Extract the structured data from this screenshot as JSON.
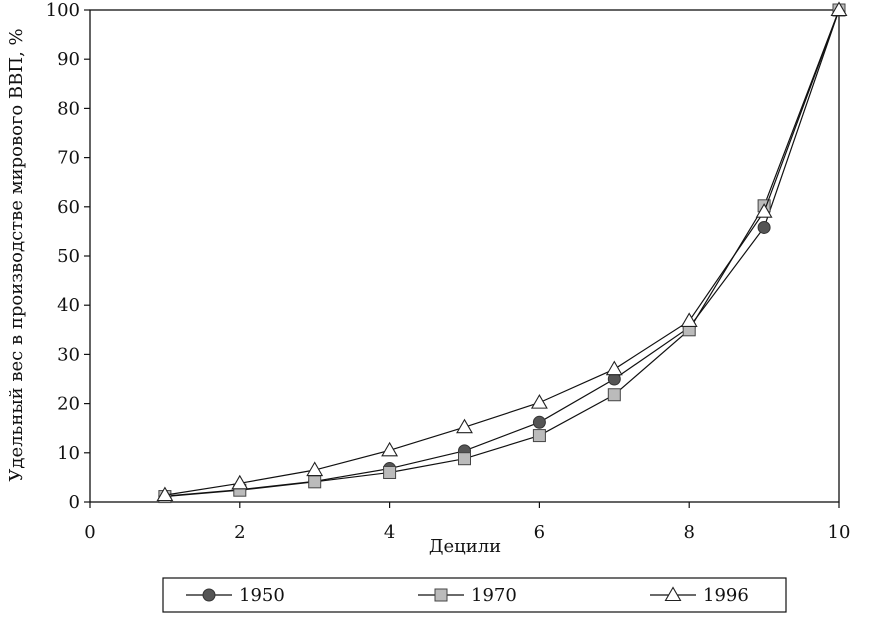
{
  "chart_data": {
    "type": "line",
    "title": "",
    "xlabel": "Децили",
    "ylabel": "Удельный вес в производстве мирового ВВП, %",
    "xlim": [
      0,
      10
    ],
    "ylim": [
      0,
      100
    ],
    "xticks": [
      "0",
      "2",
      "4",
      "6",
      "8",
      "10"
    ],
    "yticks": [
      "0",
      "10",
      "20",
      "30",
      "40",
      "50",
      "60",
      "70",
      "80",
      "90",
      "100"
    ],
    "grid": false,
    "legend_position": "bottom",
    "x": [
      1,
      2,
      3,
      4,
      5,
      6,
      7,
      8,
      9,
      10
    ],
    "series": [
      {
        "name": "1950",
        "marker": "circle",
        "color": "#555555",
        "values": [
          1.2,
          2.5,
          4.2,
          6.8,
          10.4,
          16.2,
          25.0,
          35.5,
          55.8,
          100
        ]
      },
      {
        "name": "1970",
        "marker": "square",
        "color": "#bbbbbb",
        "values": [
          1.1,
          2.4,
          4.1,
          6.0,
          8.8,
          13.5,
          21.8,
          35.0,
          60.2,
          100
        ]
      },
      {
        "name": "1996",
        "marker": "triangle",
        "color": "#ffffff",
        "values": [
          1.4,
          3.8,
          6.5,
          10.5,
          15.2,
          20.2,
          27.0,
          36.8,
          59.0,
          100
        ]
      }
    ]
  }
}
